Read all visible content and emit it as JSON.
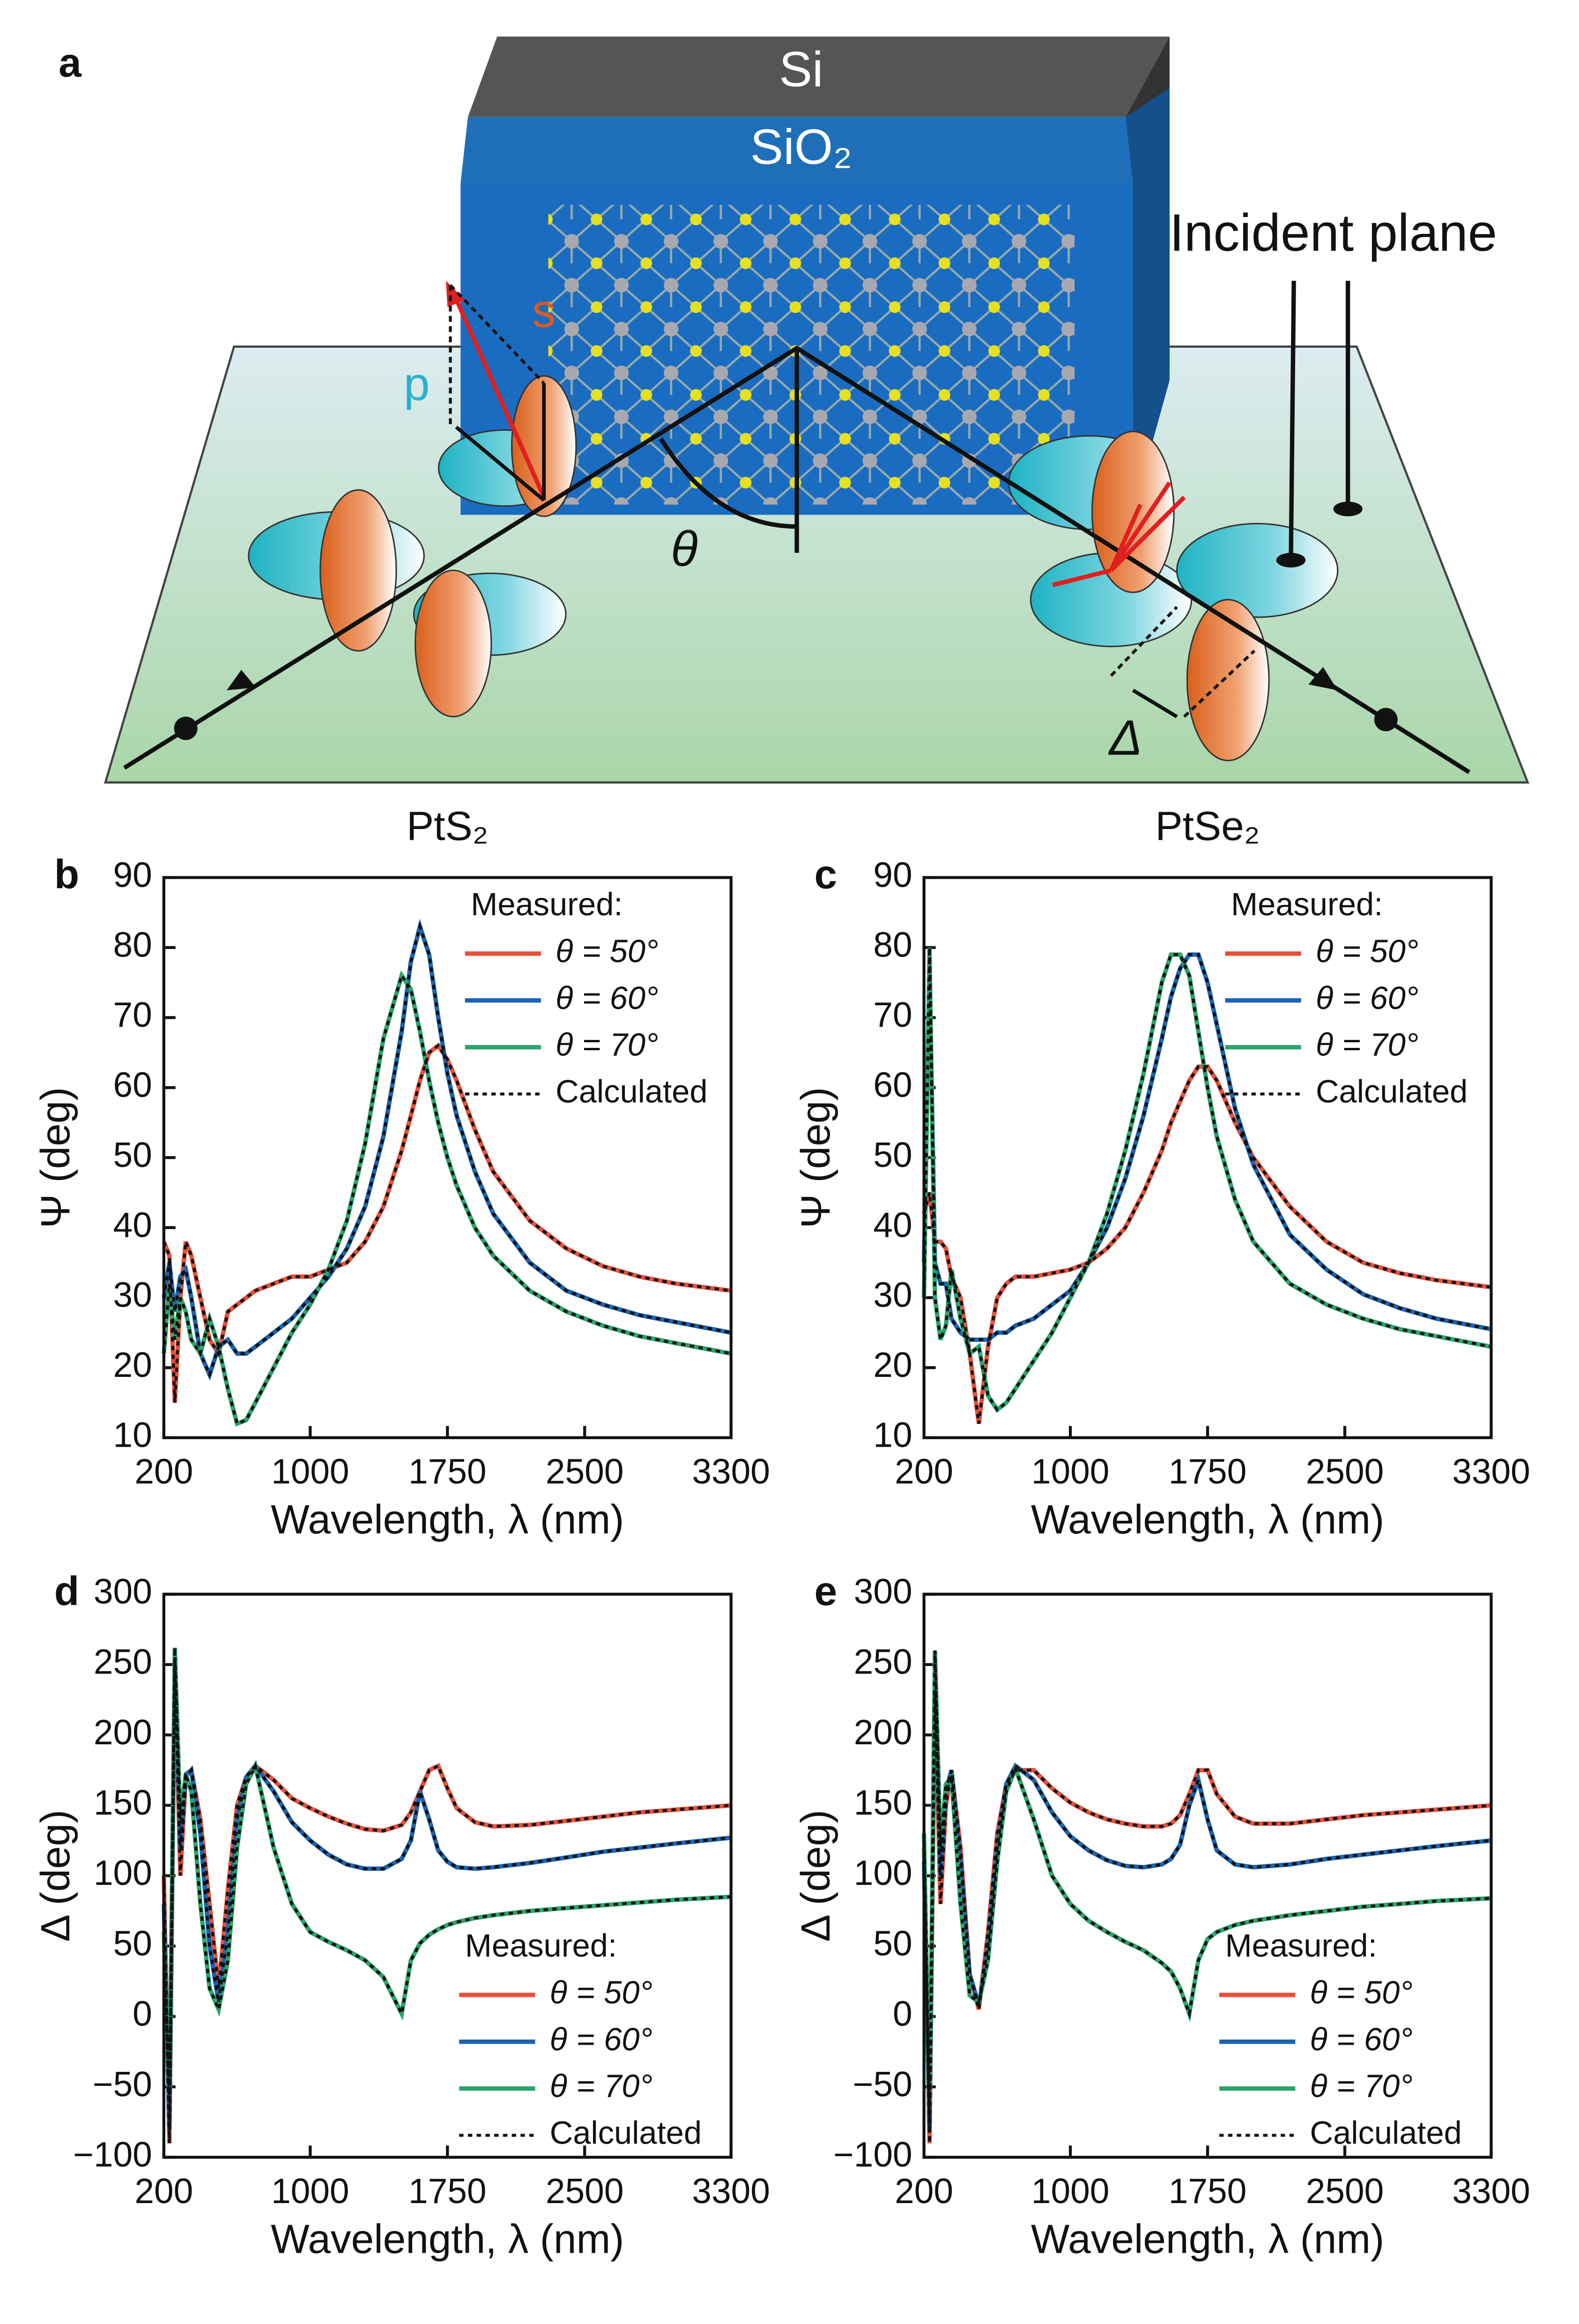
{
  "diagram": {
    "label": "a",
    "layers": [
      "Si",
      "SiO₂"
    ],
    "plane_label": "Incident plane",
    "s_label": "s",
    "p_label": "p",
    "angle_label": "θ",
    "phase_label": "Δ"
  },
  "chart_data": [
    {
      "type": "line",
      "panel": "b",
      "title": "PtS₂",
      "xlabel": "Wavelength, λ (nm)",
      "ylabel": "Ψ (deg)",
      "x": [
        200,
        230,
        260,
        290,
        320,
        350,
        400,
        450,
        500,
        550,
        600,
        650,
        700,
        800,
        900,
        1000,
        1100,
        1200,
        1300,
        1400,
        1500,
        1550,
        1600,
        1650,
        1700,
        1750,
        1800,
        1900,
        2000,
        2200,
        2400,
        2600,
        2800,
        3000,
        3300
      ],
      "xlim": [
        200,
        3300
      ],
      "xticks": [
        200,
        1000,
        1750,
        2500,
        3300
      ],
      "ylim": [
        10,
        90
      ],
      "yticks": [
        10,
        20,
        30,
        40,
        50,
        60,
        70,
        80,
        90
      ],
      "legend": "upper right",
      "legend_title": "Measured:",
      "calculated_label": "Calculated",
      "calculated_color": "#111111",
      "series": [
        {
          "name": "θ = 50°",
          "color": "#e8503a",
          "values": [
            38,
            36,
            15,
            30,
            38,
            36,
            30,
            24,
            22,
            28,
            29,
            30,
            31,
            32,
            33,
            33,
            34,
            35,
            38,
            43,
            51,
            56,
            61,
            65,
            66,
            64,
            61,
            54,
            48,
            41,
            37,
            34.5,
            33,
            32,
            31
          ]
        },
        {
          "name": "θ = 60°",
          "color": "#1a64b4",
          "values": [
            30,
            35,
            28,
            33,
            34,
            30,
            22,
            19,
            23,
            24,
            22,
            22,
            23,
            25,
            27,
            30,
            33,
            37,
            43,
            53,
            68,
            78,
            83,
            79,
            70,
            62,
            56,
            48,
            42,
            35,
            31,
            29,
            27.5,
            26.5,
            25
          ]
        },
        {
          "name": "θ = 70°",
          "color": "#2aa56a",
          "values": [
            22,
            32,
            24,
            30,
            28,
            24,
            22,
            27,
            23,
            17,
            12,
            12.5,
            15,
            20,
            25,
            29,
            34,
            41,
            52,
            67,
            76,
            74,
            68,
            61,
            55,
            50,
            46,
            40,
            36,
            31,
            28,
            26,
            24.5,
            23.5,
            22
          ]
        }
      ]
    },
    {
      "type": "line",
      "panel": "c",
      "title": "PtSe₂",
      "xlabel": "Wavelength, λ (nm)",
      "ylabel": "Ψ (deg)",
      "x": [
        200,
        230,
        260,
        290,
        320,
        350,
        400,
        450,
        500,
        550,
        600,
        650,
        700,
        800,
        900,
        1000,
        1100,
        1200,
        1300,
        1400,
        1500,
        1550,
        1600,
        1650,
        1700,
        1750,
        1800,
        1900,
        2000,
        2200,
        2400,
        2600,
        2800,
        3000,
        3300
      ],
      "xlim": [
        200,
        3300
      ],
      "xticks": [
        200,
        1000,
        1750,
        2500,
        3300
      ],
      "ylim": [
        10,
        90
      ],
      "yticks": [
        10,
        20,
        30,
        40,
        50,
        60,
        70,
        80,
        90
      ],
      "legend": "upper right",
      "legend_title": "Measured:",
      "calculated_label": "Calculated",
      "calculated_color": "#111111",
      "series": [
        {
          "name": "θ = 50°",
          "color": "#e8503a",
          "values": [
            42,
            45,
            38,
            38,
            37,
            33,
            30,
            22,
            12,
            23,
            30,
            32,
            33,
            33,
            33.5,
            34,
            35,
            37,
            40,
            45,
            51,
            55,
            58,
            61,
            63,
            63,
            61,
            55,
            50,
            43,
            38,
            35,
            33.5,
            32.5,
            31.5
          ]
        },
        {
          "name": "θ = 60°",
          "color": "#1a64b4",
          "values": [
            35,
            78,
            35,
            32,
            32,
            27,
            25,
            24,
            24,
            24,
            25,
            25,
            26,
            27,
            29,
            31,
            35,
            40,
            47,
            56,
            67,
            73,
            77,
            79,
            79,
            75,
            69,
            57,
            49,
            39,
            34,
            30.5,
            28.5,
            27,
            25.5
          ]
        },
        {
          "name": "θ = 70°",
          "color": "#2aa56a",
          "values": [
            30,
            80,
            30,
            24,
            26,
            34,
            27,
            22,
            23,
            16,
            14,
            15,
            17,
            21,
            25,
            30,
            35,
            42,
            51,
            62,
            75,
            79,
            79,
            76,
            68,
            60,
            53,
            44,
            38,
            32,
            29,
            27,
            25.5,
            24.5,
            23
          ]
        }
      ]
    },
    {
      "type": "line",
      "panel": "d",
      "xlabel": "Wavelength, λ (nm)",
      "ylabel": "Δ (deg)",
      "x": [
        200,
        230,
        260,
        290,
        320,
        350,
        400,
        450,
        500,
        550,
        600,
        650,
        700,
        800,
        900,
        1000,
        1100,
        1200,
        1300,
        1400,
        1500,
        1550,
        1600,
        1650,
        1700,
        1750,
        1800,
        1900,
        2000,
        2200,
        2400,
        2600,
        2800,
        3000,
        3300
      ],
      "xlim": [
        200,
        3300
      ],
      "xticks": [
        200,
        1000,
        1750,
        2500,
        3300
      ],
      "ylim": [
        -100,
        300
      ],
      "yticks": [
        {
          "value": -100,
          "label": "−100"
        },
        {
          "value": -50,
          "label": "−50"
        },
        0,
        50,
        100,
        150,
        200,
        250,
        300
      ],
      "legend": "lower right",
      "legend_title": "Measured:",
      "calculated_label": "Calculated",
      "calculated_color": "#111111",
      "series": [
        {
          "name": "θ = 50°",
          "color": "#e8503a",
          "values": [
            100,
            -90,
            250,
            100,
            170,
            175,
            140,
            80,
            20,
            90,
            150,
            170,
            178,
            168,
            155,
            148,
            142,
            137,
            133,
            132,
            136,
            145,
            160,
            175,
            178,
            162,
            148,
            138,
            135,
            136,
            139,
            142,
            145,
            147,
            150
          ]
        },
        {
          "name": "θ = 60°",
          "color": "#1a64b4",
          "values": [
            80,
            -80,
            255,
            120,
            172,
            175,
            130,
            50,
            10,
            60,
            140,
            170,
            178,
            160,
            138,
            125,
            115,
            108,
            105,
            105,
            112,
            125,
            160,
            140,
            118,
            110,
            106,
            105,
            106,
            109,
            113,
            117,
            120,
            123,
            127
          ]
        },
        {
          "name": "θ = 70°",
          "color": "#2aa56a",
          "values": [
            60,
            -60,
            262,
            140,
            172,
            160,
            80,
            20,
            5,
            40,
            120,
            165,
            178,
            120,
            80,
            60,
            53,
            47,
            40,
            28,
            2,
            40,
            52,
            58,
            62,
            65,
            67,
            70,
            72,
            75,
            77,
            79,
            81,
            83,
            85
          ]
        }
      ]
    },
    {
      "type": "line",
      "panel": "e",
      "xlabel": "Wavelength, λ (nm)",
      "ylabel": "Δ (deg)",
      "x": [
        200,
        230,
        260,
        290,
        320,
        350,
        400,
        450,
        500,
        550,
        600,
        650,
        700,
        800,
        900,
        1000,
        1100,
        1200,
        1300,
        1400,
        1500,
        1550,
        1600,
        1650,
        1700,
        1750,
        1800,
        1900,
        2000,
        2200,
        2400,
        2600,
        2800,
        3000,
        3300
      ],
      "xlim": [
        200,
        3300
      ],
      "xticks": [
        200,
        1000,
        1750,
        2500,
        3300
      ],
      "ylim": [
        -100,
        300
      ],
      "yticks": [
        {
          "value": -100,
          "label": "−100"
        },
        {
          "value": -50,
          "label": "−50"
        },
        0,
        50,
        100,
        150,
        200,
        250,
        300
      ],
      "legend": "lower right",
      "legend_title": "Measured:",
      "calculated_label": "Calculated",
      "calculated_color": "#111111",
      "series": [
        {
          "name": "θ = 50°",
          "color": "#e8503a",
          "values": [
            120,
            -90,
            230,
            80,
            150,
            175,
            120,
            30,
            5,
            60,
            130,
            165,
            175,
            175,
            162,
            152,
            145,
            140,
            137,
            135,
            135,
            137,
            143,
            158,
            175,
            175,
            158,
            142,
            137,
            137,
            140,
            143,
            145,
            147,
            150
          ]
        },
        {
          "name": "θ = 60°",
          "color": "#1a64b4",
          "values": [
            110,
            -80,
            255,
            100,
            160,
            175,
            110,
            30,
            8,
            50,
            120,
            165,
            178,
            168,
            145,
            128,
            118,
            111,
            107,
            106,
            108,
            112,
            122,
            150,
            168,
            140,
            118,
            108,
            106,
            108,
            112,
            115,
            118,
            121,
            125
          ]
        },
        {
          "name": "θ = 70°",
          "color": "#2aa56a",
          "values": [
            130,
            -70,
            260,
            120,
            165,
            170,
            80,
            15,
            10,
            40,
            110,
            160,
            176,
            140,
            100,
            80,
            68,
            60,
            53,
            47,
            38,
            32,
            20,
            2,
            40,
            55,
            60,
            65,
            68,
            72,
            75,
            78,
            80,
            82,
            84
          ]
        }
      ]
    }
  ]
}
